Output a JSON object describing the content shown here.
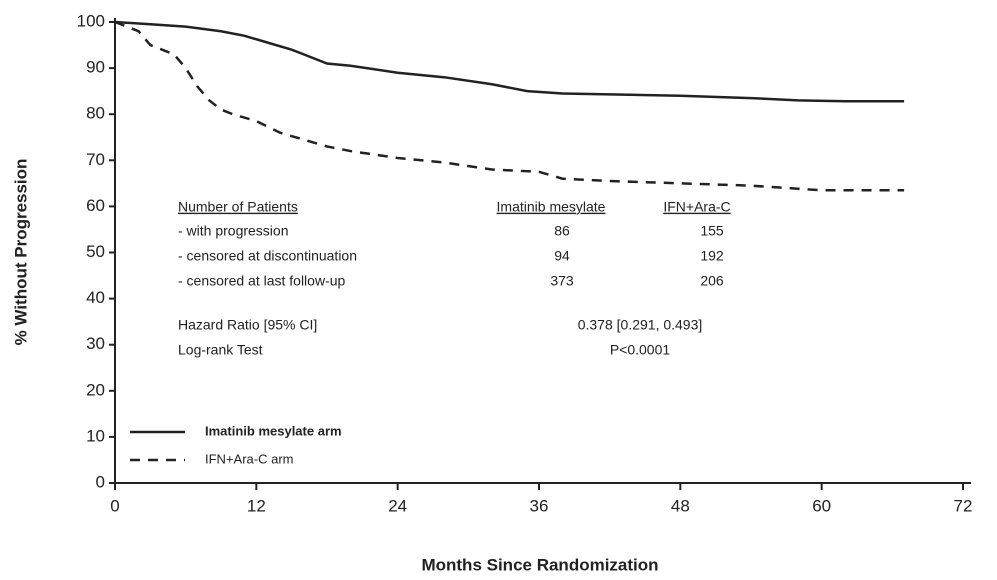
{
  "chart_data": {
    "type": "line",
    "x_label": "Months Since Randomization",
    "y_label": "% Without Progression",
    "xlim": [
      0,
      72
    ],
    "ylim": [
      0,
      100
    ],
    "xticks": [
      0,
      12,
      24,
      36,
      48,
      60,
      72
    ],
    "yticks": [
      0,
      10,
      20,
      30,
      40,
      50,
      60,
      70,
      80,
      90,
      100
    ],
    "legend": "lower left",
    "series": [
      {
        "name": "Imatinib mesylate arm",
        "color": "#222222",
        "line_style": "solid",
        "x": [
          0,
          3,
          6,
          9,
          11,
          13,
          15,
          16,
          18,
          20,
          24,
          28,
          32,
          35,
          38,
          42,
          48,
          54,
          58,
          62,
          67
        ],
        "values": [
          100,
          99.5,
          99,
          98,
          97,
          95.5,
          94,
          93,
          91,
          90.5,
          89,
          88,
          86.5,
          85,
          84.5,
          84.3,
          84,
          83.5,
          83,
          82.8,
          82.8
        ]
      },
      {
        "name": "IFN+Ara-C arm",
        "color": "#222222",
        "line_style": "dashed",
        "x": [
          0,
          2,
          3,
          4,
          5,
          6,
          7,
          8,
          9,
          10,
          12,
          14,
          16,
          18,
          20,
          24,
          28,
          32,
          36,
          38,
          42,
          48,
          54,
          60,
          67
        ],
        "values": [
          100,
          98,
          95,
          94,
          93,
          90,
          86,
          83,
          81,
          80,
          78.5,
          76,
          74.5,
          73,
          72,
          70.5,
          69.5,
          68,
          67.5,
          66,
          65.5,
          65,
          64.5,
          63.5,
          63.5
        ]
      }
    ],
    "annotation_table": {
      "columns": [
        "Number of Patients",
        "Imatinib mesylate",
        "IFN+Ara-C"
      ],
      "rows": [
        [
          "- with progression",
          86,
          155
        ],
        [
          "- censored at discontinuation",
          94,
          192
        ],
        [
          "- censored at last follow-up",
          373,
          206
        ]
      ]
    },
    "statistics": [
      [
        "Hazard Ratio [95% CI]",
        "0.378 [0.291, 0.493]"
      ],
      [
        "Log-rank Test",
        "P<0.0001"
      ]
    ]
  }
}
